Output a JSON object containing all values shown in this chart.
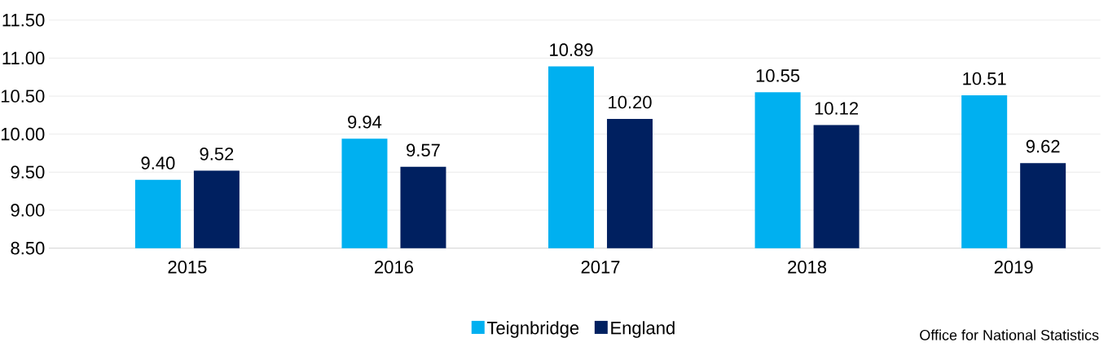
{
  "chart_data": {
    "type": "bar",
    "categories": [
      "2015",
      "2016",
      "2017",
      "2018",
      "2019"
    ],
    "series": [
      {
        "name": "Teignbridge",
        "color": "#00b0f0",
        "values": [
          9.4,
          9.94,
          10.89,
          10.55,
          10.51
        ],
        "value_labels": [
          "9.40",
          "9.94",
          "10.89",
          "10.55",
          "10.51"
        ]
      },
      {
        "name": "England",
        "color": "#002060",
        "values": [
          9.52,
          9.57,
          10.2,
          10.12,
          9.62
        ],
        "value_labels": [
          "9.52",
          "9.57",
          "10.20",
          "10.12",
          "9.62"
        ]
      }
    ],
    "ylim": [
      8.5,
      11.5
    ],
    "yticks": [
      {
        "value": 8.5,
        "label": "8.50"
      },
      {
        "value": 9.0,
        "label": "9.00"
      },
      {
        "value": 9.5,
        "label": "9.50"
      },
      {
        "value": 10.0,
        "label": "10.00"
      },
      {
        "value": 10.5,
        "label": "10.50"
      },
      {
        "value": 11.0,
        "label": "11.00"
      },
      {
        "value": 11.5,
        "label": "11.50"
      }
    ],
    "grid": "y",
    "legend": "bottom",
    "annotations": [
      "Office for National Statistics"
    ]
  }
}
